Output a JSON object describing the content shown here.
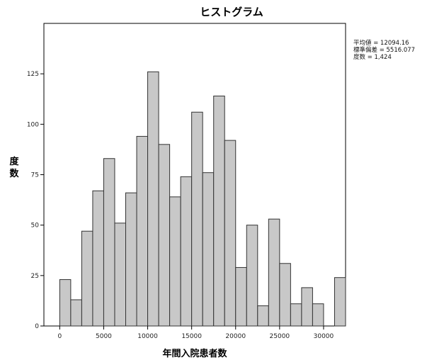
{
  "chart_data": {
    "type": "bar",
    "title": "ヒストグラム",
    "xlabel": "年間入院患者数",
    "ylabel": "度数",
    "bin_width": 1250,
    "bins": [
      {
        "x": 1250,
        "count": 23
      },
      {
        "x": 2500,
        "count": 13
      },
      {
        "x": 3750,
        "count": 47
      },
      {
        "x": 5000,
        "count": 67
      },
      {
        "x": 6250,
        "count": 83
      },
      {
        "x": 7500,
        "count": 51
      },
      {
        "x": 8750,
        "count": 66
      },
      {
        "x": 10000,
        "count": 94
      },
      {
        "x": 11250,
        "count": 126
      },
      {
        "x": 12500,
        "count": 90
      },
      {
        "x": 13750,
        "count": 64
      },
      {
        "x": 15000,
        "count": 74
      },
      {
        "x": 16250,
        "count": 106
      },
      {
        "x": 17500,
        "count": 76
      },
      {
        "x": 18750,
        "count": 114
      },
      {
        "x": 20000,
        "count": 92
      },
      {
        "x": 21250,
        "count": 29
      },
      {
        "x": 22500,
        "count": 50
      },
      {
        "x": 23750,
        "count": 10
      },
      {
        "x": 25000,
        "count": 53
      },
      {
        "x": 26250,
        "count": 31
      },
      {
        "x": 27500,
        "count": 11
      },
      {
        "x": 28750,
        "count": 19
      },
      {
        "x": 30000,
        "count": 11
      },
      {
        "x": 32500,
        "count": 24
      }
    ],
    "xlim": [
      -1800,
      32500
    ],
    "ylim": [
      0,
      150
    ],
    "x_ticks": [
      "0",
      "5000",
      "10000",
      "15000",
      "20000",
      "25000",
      "30000"
    ],
    "x_tick_values": [
      0,
      5000,
      10000,
      15000,
      20000,
      25000,
      30000
    ],
    "y_ticks": [
      "0",
      "25",
      "50",
      "75",
      "100",
      "125"
    ],
    "y_tick_values": [
      0,
      25,
      50,
      75,
      100,
      125
    ],
    "bar_fill": "#c8c8c8",
    "bar_stroke": "#333333",
    "grid": false,
    "legend": {
      "placement": "right",
      "lines": [
        "平均値 = 12094.16",
        "標準偏差 = 5516.077",
        "度数 = 1,424"
      ]
    }
  }
}
